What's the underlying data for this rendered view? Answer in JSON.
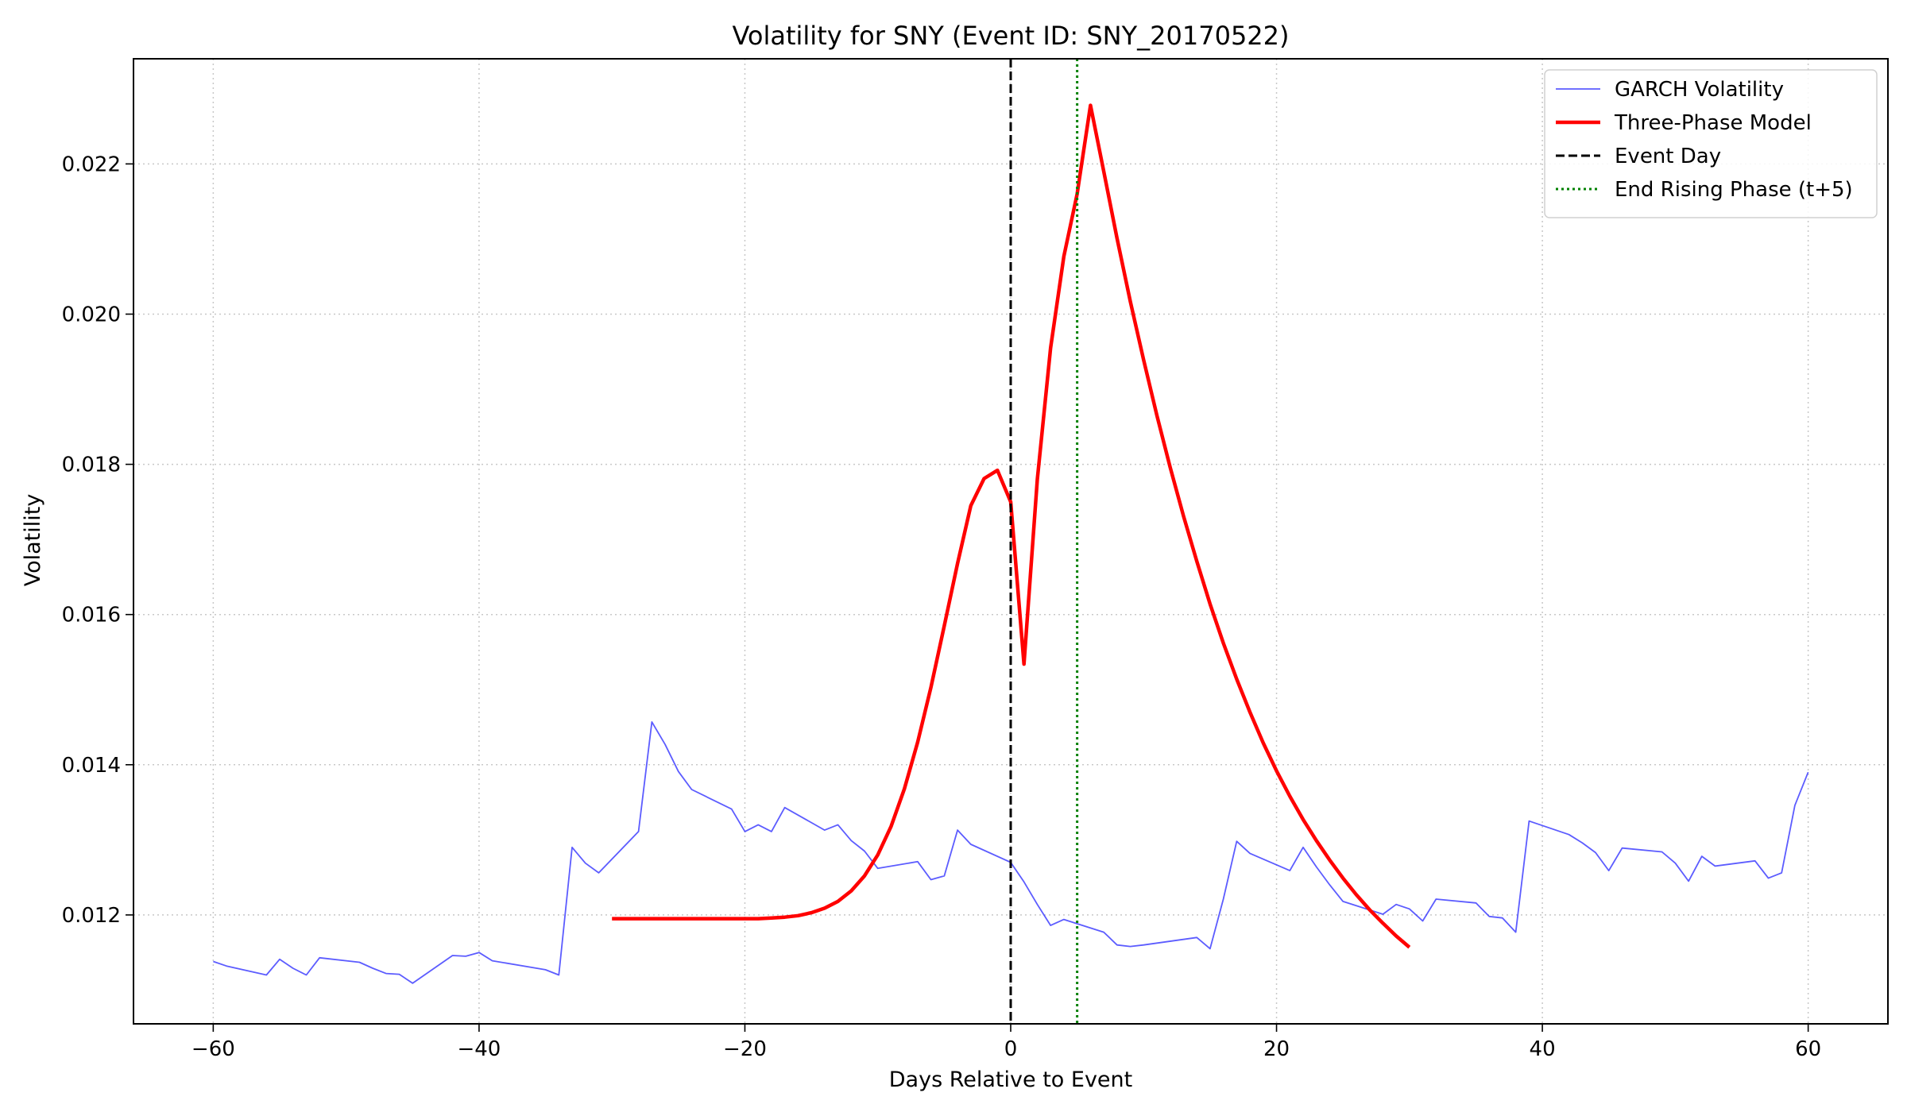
{
  "chart_data": {
    "type": "line",
    "title": "Volatility for SNY (Event ID: SNY_20170522)",
    "xlabel": "Days Relative to Event",
    "ylabel": "Volatility",
    "xlim": [
      -66,
      66
    ],
    "ylim": [
      0.01055,
      0.0234
    ],
    "xticks": [
      -60,
      -40,
      -20,
      0,
      20,
      40,
      60
    ],
    "yticks": [
      0.012,
      0.014,
      0.016,
      0.018,
      0.02,
      0.022
    ],
    "grid": true,
    "legend_position": "top-right",
    "series": [
      {
        "name": "GARCH Volatility",
        "color": "#3333ff",
        "style": "solid",
        "x": [
          -60,
          -59,
          -56,
          -55,
          -54,
          -53,
          -52,
          -49,
          -48,
          -47,
          -46,
          -45,
          -42,
          -41,
          -40,
          -39,
          -35,
          -34,
          -33,
          -32,
          -31,
          -28,
          -27,
          -26,
          -25,
          -24,
          -21,
          -20,
          -19,
          -18,
          -17,
          -14,
          -13,
          -12,
          -11,
          -10,
          -7,
          -6,
          -5,
          -4,
          -3,
          0,
          1,
          2,
          3,
          4,
          7,
          8,
          9,
          10,
          14,
          15,
          16,
          17,
          18,
          21,
          22,
          23,
          24,
          25,
          28,
          29,
          30,
          31,
          32,
          35,
          36,
          37,
          38,
          39,
          42,
          43,
          44,
          45,
          46,
          49,
          50,
          51,
          52,
          53,
          56,
          57,
          58,
          59,
          60
        ],
        "y": [
          0.01138,
          0.01132,
          0.0112,
          0.01141,
          0.01129,
          0.0112,
          0.01143,
          0.01137,
          0.01129,
          0.01122,
          0.01121,
          0.01109,
          0.01146,
          0.01145,
          0.0115,
          0.01139,
          0.01127,
          0.0112,
          0.0129,
          0.01269,
          0.01256,
          0.01311,
          0.01457,
          0.01427,
          0.01391,
          0.01367,
          0.01341,
          0.01311,
          0.0132,
          0.01311,
          0.01343,
          0.01313,
          0.0132,
          0.01299,
          0.01285,
          0.01262,
          0.01271,
          0.01247,
          0.01252,
          0.01313,
          0.01294,
          0.0127,
          0.01244,
          0.01214,
          0.01186,
          0.01194,
          0.01177,
          0.0116,
          0.01158,
          0.0116,
          0.0117,
          0.01155,
          0.01221,
          0.01298,
          0.01282,
          0.01259,
          0.0129,
          0.01264,
          0.0124,
          0.01218,
          0.01201,
          0.01214,
          0.01208,
          0.01192,
          0.01221,
          0.01216,
          0.01198,
          0.01196,
          0.01177,
          0.01325,
          0.01307,
          0.01296,
          0.01283,
          0.01259,
          0.01289,
          0.01284,
          0.01269,
          0.01245,
          0.01278,
          0.01265,
          0.01272,
          0.01249,
          0.01256,
          0.01346,
          0.0139
        ]
      },
      {
        "name": "Three-Phase Model",
        "color": "#ff0000",
        "style": "solid",
        "x": [
          -30,
          -29,
          -28,
          -27,
          -26,
          -25,
          -24,
          -23,
          -22,
          -21,
          -20,
          -19,
          -18,
          -17,
          -16,
          -15,
          -14,
          -13,
          -12,
          -11,
          -10,
          -9,
          -8,
          -7,
          -6,
          -5,
          -4,
          -3,
          -2,
          -1,
          0,
          1,
          2,
          3,
          4,
          5,
          6,
          7,
          8,
          9,
          10,
          11,
          12,
          13,
          14,
          15,
          16,
          17,
          18,
          19,
          20,
          21,
          22,
          23,
          24,
          25,
          26,
          27,
          28,
          29,
          30
        ],
        "y": [
          0.01195,
          0.01195,
          0.01195,
          0.01195,
          0.01195,
          0.01195,
          0.01195,
          0.01195,
          0.01195,
          0.01195,
          0.01195,
          0.01195,
          0.01196,
          0.01197,
          0.01199,
          0.01203,
          0.01209,
          0.01218,
          0.01232,
          0.01252,
          0.0128,
          0.01318,
          0.01368,
          0.0143,
          0.01503,
          0.01585,
          0.01668,
          0.01745,
          0.01781,
          0.01792,
          0.0175,
          0.01534,
          0.0178,
          0.01955,
          0.02077,
          0.0216,
          0.02278,
          0.0219,
          0.02101,
          0.02017,
          0.01939,
          0.01865,
          0.01796,
          0.01731,
          0.01671,
          0.01614,
          0.01562,
          0.01514,
          0.0147,
          0.01429,
          0.01392,
          0.01358,
          0.01327,
          0.01299,
          0.01273,
          0.01249,
          0.01227,
          0.01207,
          0.01189,
          0.01172,
          0.01157
        ]
      }
    ],
    "vlines": [
      {
        "name": "Event Day",
        "x": 0,
        "color": "#000000",
        "style": "dashed"
      },
      {
        "name": "End Rising Phase (t+5)",
        "x": 5,
        "color": "#008000",
        "style": "dotted"
      }
    ]
  }
}
